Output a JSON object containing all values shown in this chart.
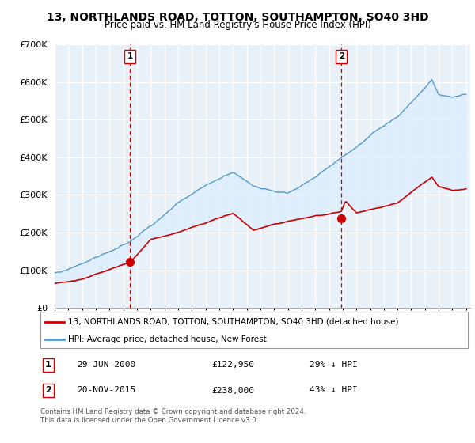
{
  "title": "13, NORTHLANDS ROAD, TOTTON, SOUTHAMPTON, SO40 3HD",
  "subtitle": "Price paid vs. HM Land Registry's House Price Index (HPI)",
  "ylim": [
    0,
    700000
  ],
  "yticks": [
    0,
    100000,
    200000,
    300000,
    400000,
    500000,
    600000,
    700000
  ],
  "ytick_labels": [
    "£0",
    "£100K",
    "£200K",
    "£300K",
    "£400K",
    "£500K",
    "£600K",
    "£700K"
  ],
  "legend_line1": "13, NORTHLANDS ROAD, TOTTON, SOUTHAMPTON, SO40 3HD (detached house)",
  "legend_line2": "HPI: Average price, detached house, New Forest",
  "sale1_date": "29-JUN-2000",
  "sale1_price": "£122,950",
  "sale1_hpi": "29% ↓ HPI",
  "sale2_date": "20-NOV-2015",
  "sale2_price": "£238,000",
  "sale2_hpi": "43% ↓ HPI",
  "footer": "Contains HM Land Registry data © Crown copyright and database right 2024.\nThis data is licensed under the Open Government Licence v3.0.",
  "red_color": "#cc0000",
  "blue_color": "#5599cc",
  "fill_color": "#ddeeff",
  "vline_color": "#cc0000",
  "background": "#ffffff",
  "chart_bg": "#e8f0f8",
  "grid_color": "#cccccc"
}
